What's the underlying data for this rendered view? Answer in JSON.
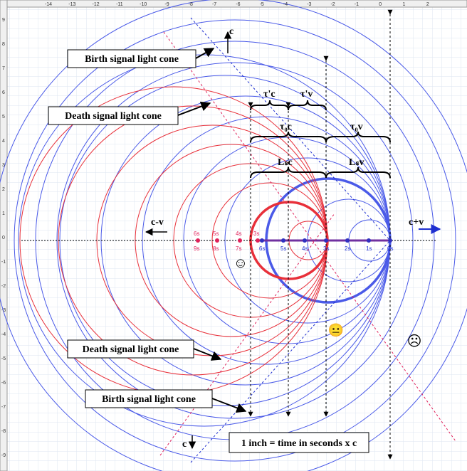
{
  "ruler_top": [
    "-14",
    "-13",
    "-12",
    "-11",
    "-10",
    "-9",
    "-8",
    "-7",
    "-6",
    "-5",
    "-4",
    "-3",
    "-2",
    "-1",
    "0",
    "1",
    "2"
  ],
  "ruler_left": [
    "9",
    "8",
    "7",
    "6",
    "5",
    "4",
    "3",
    "2",
    "1",
    "0",
    "-1",
    "-2",
    "-3",
    "-4",
    "-5",
    "-6",
    "-7",
    "-8",
    "-9"
  ],
  "callouts": [
    "Birth signal light cone",
    "Death signal light cone",
    "Death signal light cone",
    "Birth signal light cone"
  ],
  "scale_note": "1 inch  = time in seconds x c",
  "labels": {
    "c_up": "c",
    "c_down": "c",
    "c_minus_v": "c-v",
    "c_plus_v": "c+v",
    "tau_prime_c": "τ'c",
    "tau_prime_v": "τ'v",
    "tau0_c": "τ₀c",
    "tau0_v": "τ₀v",
    "Ls_c": "Lₛc",
    "Ls_v": "Lₛv"
  },
  "red_point_labels": [
    "6s",
    "5s",
    "4s",
    "3s"
  ],
  "red_lower_labels": [
    "9s",
    "8s",
    "7s"
  ],
  "axis_point_labels": [
    "6s",
    "5s",
    "4s",
    "3s",
    "2s",
    "1s",
    "0s"
  ],
  "faces": [
    "☺",
    "😐",
    "☹"
  ]
}
